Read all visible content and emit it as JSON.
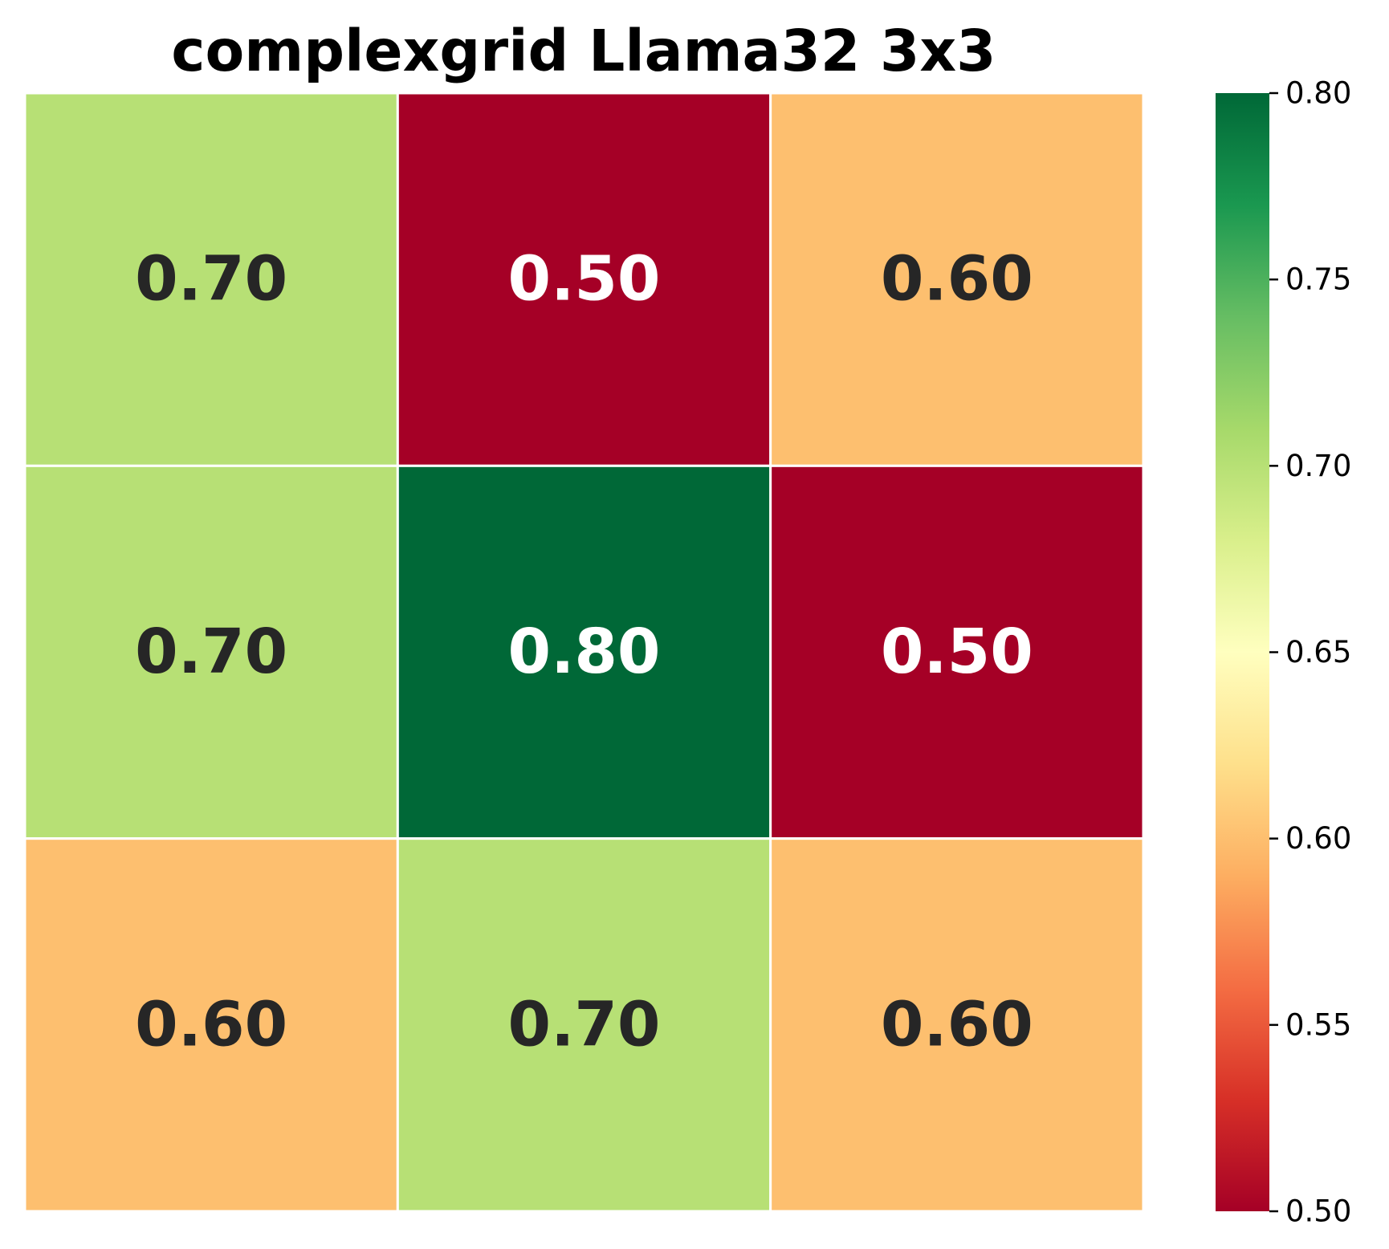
{
  "chart_data": {
    "type": "heatmap",
    "title": "complexgrid Llama32 3x3",
    "rows": 3,
    "cols": 3,
    "values": [
      [
        0.7,
        0.5,
        0.6
      ],
      [
        0.7,
        0.8,
        0.5
      ],
      [
        0.6,
        0.7,
        0.6
      ]
    ],
    "cell_labels": [
      [
        "0.70",
        "0.50",
        "0.60"
      ],
      [
        "0.70",
        "0.80",
        "0.50"
      ],
      [
        "0.60",
        "0.70",
        "0.60"
      ]
    ],
    "colormap": "RdYlGn",
    "vmin": 0.5,
    "vmax": 0.8,
    "colorbar": {
      "ticks": [
        0.5,
        0.55,
        0.6,
        0.65,
        0.7,
        0.75,
        0.8
      ],
      "tick_labels": [
        "0.50",
        "0.55",
        "0.60",
        "0.65",
        "0.70",
        "0.75",
        "0.80"
      ]
    },
    "xlabel": "",
    "ylabel": "",
    "grid_line_color": "#ffffff",
    "text_color_dark": "#262626",
    "text_color_light": "#ffffff"
  }
}
